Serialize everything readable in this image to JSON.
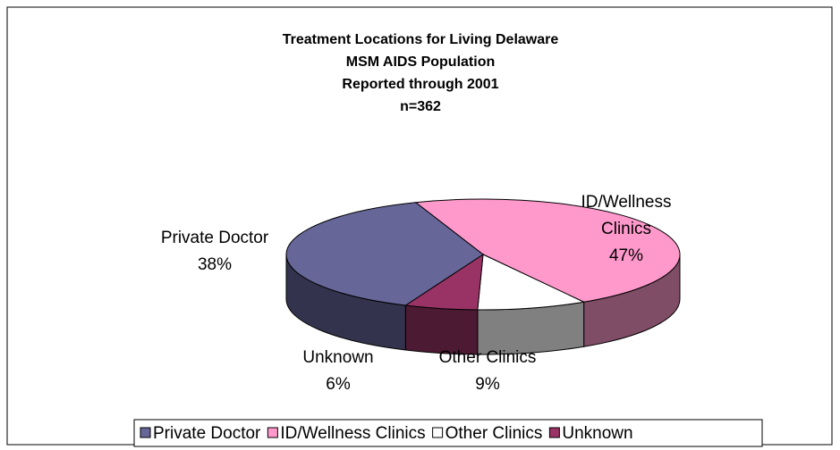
{
  "chart_data": {
    "type": "pie3d",
    "title": [
      "Treatment Locations for Living Delaware",
      "MSM AIDS Population",
      "Reported through 2001",
      "n=362"
    ],
    "categories": [
      "ID/Wellness Clinics",
      "Other Clinics",
      "Unknown",
      "Private Doctor"
    ],
    "values": [
      47,
      9,
      6,
      38
    ],
    "value_labels": [
      "47%",
      "9%",
      "6%",
      "38%"
    ],
    "colors": [
      "#ff99cc",
      "#ffffff",
      "#993366",
      "#666699"
    ],
    "legend_order": [
      3,
      0,
      1,
      2
    ],
    "legend": "bottom"
  }
}
